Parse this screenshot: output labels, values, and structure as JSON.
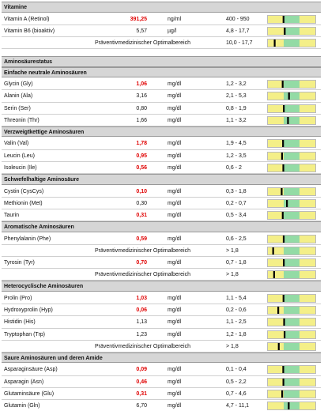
{
  "sections": [
    {
      "title": "Vitamine",
      "rows": [
        {
          "name": "Vitamin A (Retinol)",
          "value": "391,25",
          "unit": "ng/ml",
          "range": "400 - 950",
          "value_color": "#e00000"
        },
        {
          "name": "Vitamin B6 (bioaktiv)",
          "value": "5,57",
          "unit": "µg/l",
          "range": "4,8 - 17,7"
        },
        {
          "label": "Präventivmedizinischer Optimalbereich",
          "range": "10,0 - 17,7"
        }
      ]
    },
    {
      "title": "Aminosäurestatus"
    },
    {
      "title": "Einfache neutrale Aminosäuren",
      "rows": [
        {
          "name": "Glycin (Gly)",
          "value": "1,06",
          "unit": "mg/dl",
          "range": "1,2 - 3,2",
          "value_color": "#e00000"
        },
        {
          "name": "Alanin (Ala)",
          "value": "3,16",
          "unit": "mg/dl",
          "range": "2,1 - 5,3"
        },
        {
          "name": "Serin (Ser)",
          "value": "0,80",
          "unit": "mg/dl",
          "range": "0,8 - 1,9"
        },
        {
          "name": "Threonin (Thr)",
          "value": "1,66",
          "unit": "mg/dl",
          "range": "1,1 - 3,2"
        }
      ]
    },
    {
      "title": "Verzweigtkettige Aminosäuren",
      "rows": [
        {
          "name": "Valin (Val)",
          "value": "1,78",
          "unit": "mg/dl",
          "range": "1,9 - 4,5",
          "value_color": "#e00000"
        },
        {
          "name": "Leucin (Leu)",
          "value": "0,95",
          "unit": "mg/dl",
          "range": "1,2 - 3,5",
          "value_color": "#e00000"
        },
        {
          "name": "Isoleucin (Ile)",
          "value": "0,56",
          "unit": "mg/dl",
          "range": "0,6 - 2",
          "value_color": "#e00000"
        }
      ]
    },
    {
      "title": "Schwefelhaltige Aminosäure",
      "rows": [
        {
          "name": "Cystin (CysCys)",
          "value": "0,10",
          "unit": "mg/dl",
          "range": "0,3 - 1,8",
          "value_color": "#e00000"
        },
        {
          "name": "Methionin (Met)",
          "value": "0,30",
          "unit": "mg/dl",
          "range": "0,2 - 0,7"
        },
        {
          "name": "Taurin",
          "value": "0,31",
          "unit": "mg/dl",
          "range": "0,5 - 3,4",
          "value_color": "#e00000"
        }
      ]
    },
    {
      "title": "Aromatische Aminosäuren",
      "rows": [
        {
          "name": "Phenylalanin (Phe)",
          "value": "0,59",
          "unit": "mg/dl",
          "range": "0,6 - 2,5",
          "value_color": "#e00000"
        },
        {
          "label": "Präventivmedizinischer Optimalbereich",
          "range": "> 1,8"
        },
        {
          "name": "Tyrosin (Tyr)",
          "value": "0,70",
          "unit": "mg/dl",
          "range": "0,7 - 1,8",
          "value_color": "#e00000"
        },
        {
          "label": "Präventivmedizinischer Optimalbereich",
          "range": "> 1,8"
        }
      ]
    },
    {
      "title": "Heterocyclische Aminosäuren",
      "rows": [
        {
          "name": "Prolin (Pro)",
          "value": "1,03",
          "unit": "mg/dl",
          "range": "1,1 - 5,4",
          "value_color": "#e00000"
        },
        {
          "name": "Hydroxyprolin (Hyp)",
          "value": "0,06",
          "unit": "mg/dl",
          "range": "0,2 - 0,6",
          "value_color": "#e00000"
        },
        {
          "name": "Histidin (His)",
          "value": "1,13",
          "unit": "mg/dl",
          "range": "1,1 - 2,5"
        },
        {
          "name": "Tryptophan (Trp)",
          "value": "1,23",
          "unit": "mg/dl",
          "range": "1,2 - 1,8"
        },
        {
          "label": "Präventivmedizinischer Optimalbereich",
          "range": "> 1,8"
        }
      ]
    },
    {
      "title": "Saure Aminosäuren und deren Amide",
      "rows": [
        {
          "name": "Asparaginsäure (Asp)",
          "value": "0,09",
          "unit": "mg/dl",
          "range": "0,1 - 0,4",
          "value_color": "#e00000"
        },
        {
          "name": "Asparagin (Asn)",
          "value": "0,46",
          "unit": "mg/dl",
          "range": "0,5 - 2,2",
          "value_color": "#e00000"
        },
        {
          "name": "Glutaminsäure (Glu)",
          "value": "0,31",
          "unit": "mg/dl",
          "range": "0,7 - 4,6",
          "value_color": "#e00000"
        },
        {
          "name": "Glutamin (Gln)",
          "value": "6,70",
          "unit": "mg/dl",
          "range": "4,7 - 11,1"
        }
      ]
    }
  ]
}
